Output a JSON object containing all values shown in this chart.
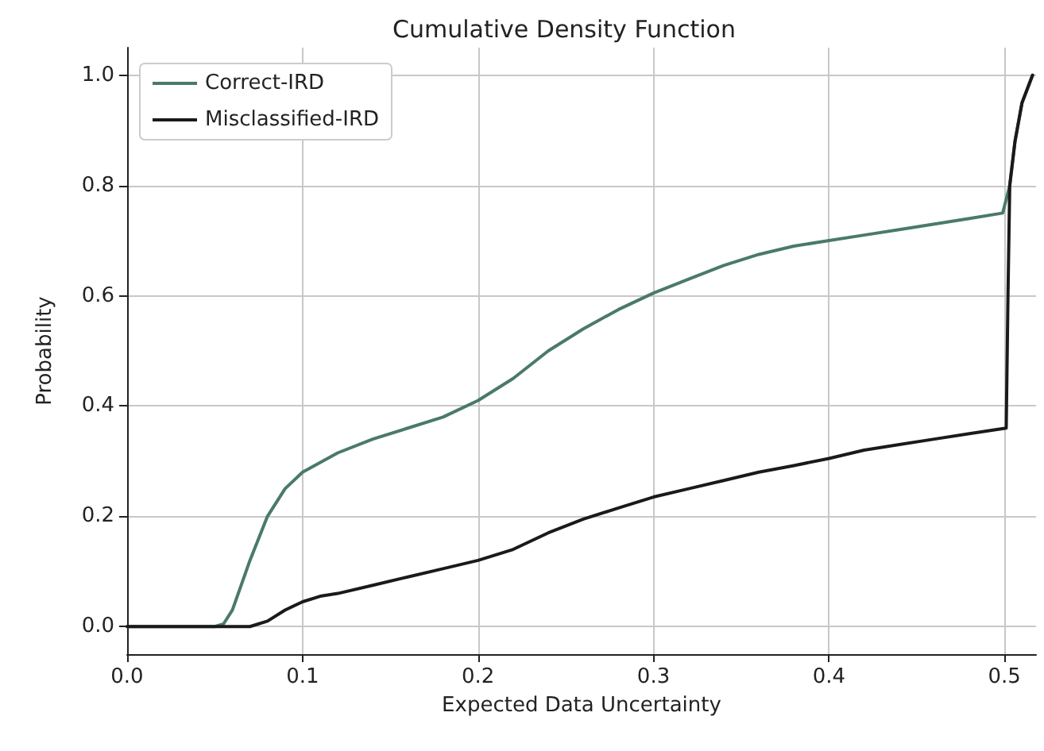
{
  "chart_data": {
    "type": "line",
    "title": "Cumulative Density Function",
    "xlabel": "Expected Data Uncertainty",
    "ylabel": "Probability",
    "xlim": [
      0,
      0.518
    ],
    "ylim": [
      -0.05,
      1.05
    ],
    "xticks": [
      {
        "value": 0,
        "label": "0.0"
      },
      0.1,
      0.2,
      0.3,
      0.4,
      0.5
    ],
    "yticks": [
      {
        "value": 0,
        "label": "0.0"
      },
      0.2,
      0.4,
      0.6,
      0.8,
      {
        "value": 1,
        "label": "1.0"
      }
    ],
    "grid": true,
    "legend": "top left",
    "marker": "none",
    "line_style": "solid",
    "series": [
      {
        "name": "Correct-IRD",
        "color": "#4a7a68",
        "x": [
          0,
          0.05,
          0.055,
          0.06,
          0.07,
          0.08,
          0.09,
          0.1,
          0.12,
          0.14,
          0.16,
          0.18,
          0.2,
          0.22,
          0.24,
          0.26,
          0.28,
          0.3,
          0.32,
          0.34,
          0.36,
          0.38,
          0.4,
          0.42,
          0.44,
          0.46,
          0.48,
          0.499,
          0.503,
          0.506,
          0.51,
          0.516
        ],
        "values": [
          0,
          0,
          0.005,
          0.03,
          0.12,
          0.2,
          0.25,
          0.28,
          0.315,
          0.34,
          0.36,
          0.38,
          0.41,
          0.45,
          0.5,
          0.54,
          0.575,
          0.605,
          0.63,
          0.655,
          0.675,
          0.69,
          0.7,
          0.71,
          0.72,
          0.73,
          0.74,
          0.75,
          0.8,
          0.88,
          0.95,
          1.0
        ]
      },
      {
        "name": "Misclassified-IRD",
        "color": "#1a1a1a",
        "x": [
          0,
          0.07,
          0.08,
          0.09,
          0.1,
          0.11,
          0.12,
          0.14,
          0.16,
          0.18,
          0.2,
          0.22,
          0.24,
          0.26,
          0.28,
          0.3,
          0.32,
          0.34,
          0.36,
          0.38,
          0.4,
          0.42,
          0.44,
          0.46,
          0.48,
          0.501,
          0.502,
          0.503,
          0.506,
          0.51,
          0.516
        ],
        "values": [
          0,
          0,
          0.01,
          0.03,
          0.045,
          0.055,
          0.06,
          0.075,
          0.09,
          0.105,
          0.12,
          0.14,
          0.17,
          0.195,
          0.215,
          0.235,
          0.25,
          0.265,
          0.28,
          0.292,
          0.305,
          0.32,
          0.33,
          0.34,
          0.35,
          0.36,
          0.6,
          0.8,
          0.88,
          0.95,
          1.0
        ]
      }
    ]
  }
}
